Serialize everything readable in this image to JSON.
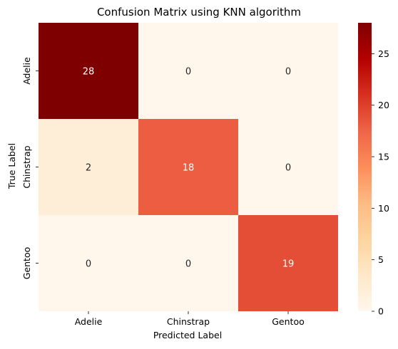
{
  "chart_data": {
    "type": "heatmap",
    "title": "Confusion Matrix using KNN algorithm",
    "xlabel": "Predicted Label",
    "ylabel": "True Label",
    "x_categories": [
      "Adelie",
      "Chinstrap",
      "Gentoo"
    ],
    "y_categories": [
      "Adelie",
      "Chinstrap",
      "Gentoo"
    ],
    "values": [
      [
        28,
        0,
        0
      ],
      [
        2,
        18,
        0
      ],
      [
        0,
        0,
        19
      ]
    ],
    "colormap": "OrRd",
    "colorbar": {
      "vmin": 0,
      "vmax": 28,
      "ticks": [
        0,
        5,
        10,
        15,
        20,
        25
      ]
    },
    "colors": {
      "low": "#fff7ec",
      "high": "#7f0000"
    }
  }
}
